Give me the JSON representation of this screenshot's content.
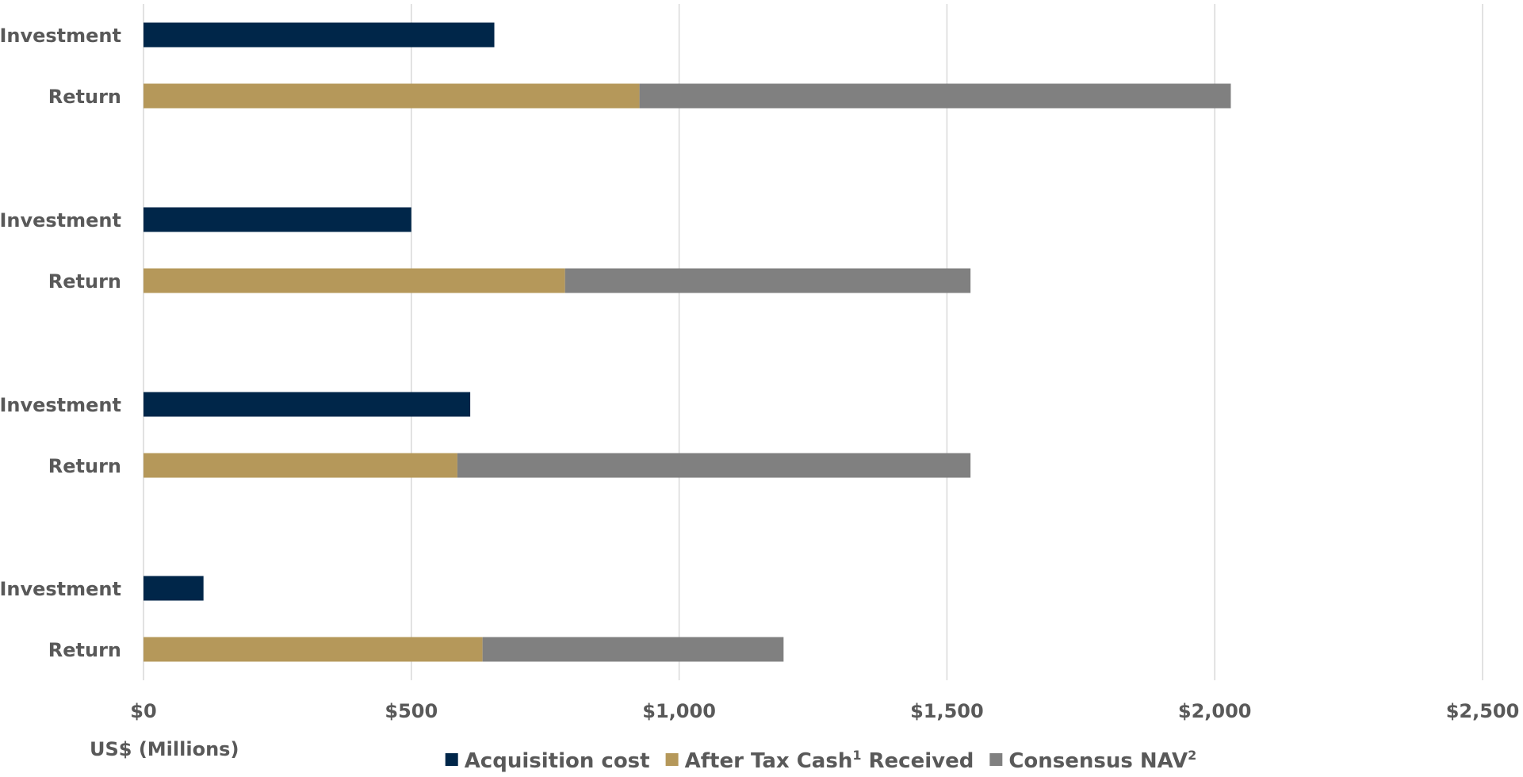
{
  "chart_data": {
    "type": "bar",
    "orientation": "horizontal",
    "stacked": true,
    "categories": [
      "Investment",
      "Return",
      "Investment",
      "Return",
      "Investment",
      "Return",
      "Investment",
      "Return"
    ],
    "series": [
      {
        "name": "Acquisition cost",
        "color": "#002649",
        "values": [
          655,
          0,
          500,
          0,
          610,
          0,
          112,
          0
        ]
      },
      {
        "name": "After Tax Cash",
        "name_sup": "1",
        "name_suffix": " Received",
        "color": "#b5985a",
        "values": [
          0,
          926,
          0,
          787,
          0,
          586,
          0,
          633
        ]
      },
      {
        "name": "Consensus NAV",
        "name_sup": "2",
        "name_suffix": "",
        "color": "#808080",
        "values": [
          0,
          1104,
          0,
          757,
          0,
          958,
          0,
          562
        ]
      }
    ],
    "xlim": [
      0,
      2500
    ],
    "xticks": [
      0,
      500,
      1000,
      1500,
      2000,
      2500
    ],
    "xtick_labels": [
      "$0",
      "$500",
      "$1,000",
      "$1,500",
      "$2,000",
      "$2,500"
    ],
    "xlabel": "US$ (Millions)",
    "ylabel": "",
    "title": "",
    "grid": "vertical",
    "legend": "bottom-center"
  }
}
